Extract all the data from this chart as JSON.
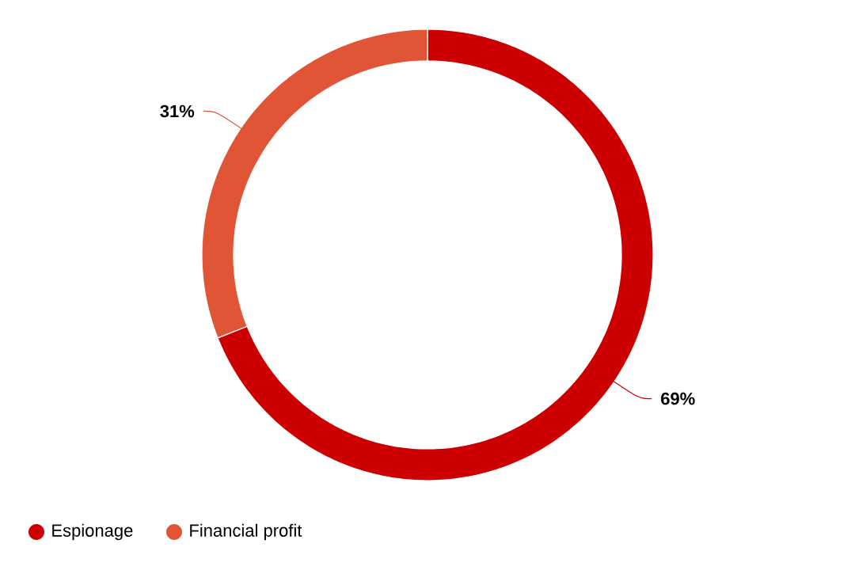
{
  "chart_data": {
    "type": "donut",
    "categories": [
      "Espionage",
      "Financial profit"
    ],
    "values": [
      69,
      31
    ],
    "colors": [
      "#cc0000",
      "#e05535"
    ],
    "value_labels": [
      "69%",
      "31%"
    ],
    "legend": "bottom left"
  }
}
